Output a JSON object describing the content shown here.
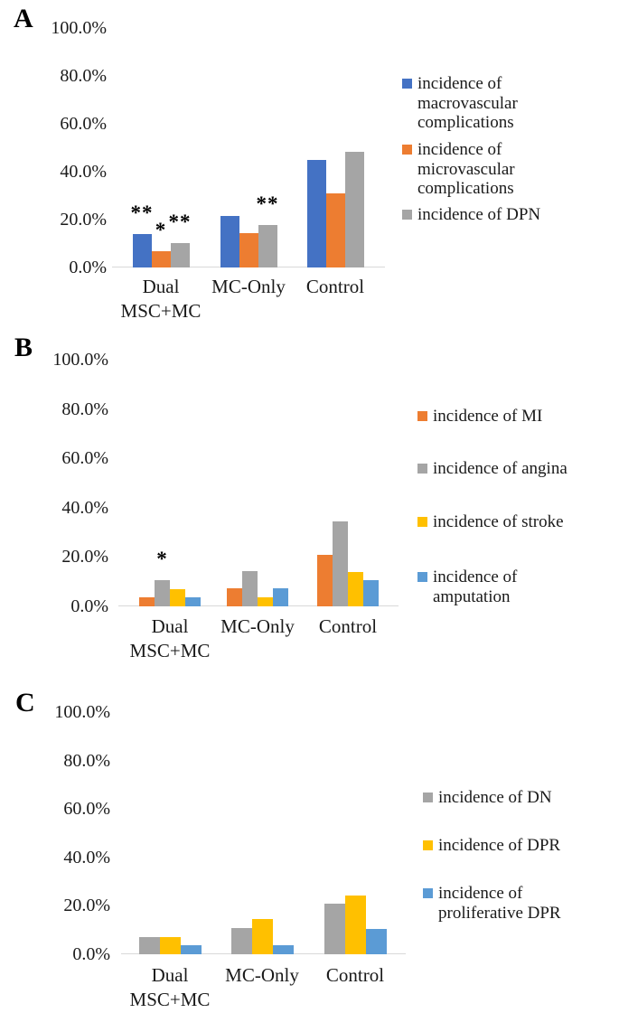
{
  "figure": {
    "type": "three-panel grouped bar chart figure",
    "background": "#ffffff",
    "panel_letters": [
      "A",
      "B",
      "C"
    ]
  },
  "chart_data": [
    {
      "type": "bar",
      "panel": "A",
      "title": "",
      "xlabel": "",
      "ylabel": "",
      "ylim": [
        0,
        100
      ],
      "y_unit": "percent",
      "y_ticks": [
        "100.0%",
        "80.0%",
        "60.0%",
        "40.0%",
        "20.0%",
        "0.0%"
      ],
      "grid": false,
      "legend_position": "right",
      "categories": [
        "Dual\nMSC+MC",
        "MC-Only",
        "Control"
      ],
      "series": [
        {
          "name": "incidence of macrovascular complications",
          "name_lines": [
            "incidence of",
            "macrovascular",
            "complications"
          ],
          "color": "#4472C4",
          "values": [
            13.8,
            21.4,
            44.8
          ]
        },
        {
          "name": "incidence of microvascular complications",
          "name_lines": [
            "incidence of",
            "microvascular",
            "complications"
          ],
          "color": "#ED7D31",
          "values": [
            6.9,
            14.3,
            31.0
          ]
        },
        {
          "name": "incidence of DPN",
          "name_lines": [
            "incidence of DPN"
          ],
          "color": "#A5A5A5",
          "values": [
            10.3,
            17.9,
            48.3
          ]
        }
      ],
      "significance_markers": [
        {
          "category_index": 0,
          "series_index": 0,
          "marker": "**"
        },
        {
          "category_index": 0,
          "series_index": 1,
          "marker": "*"
        },
        {
          "category_index": 0,
          "series_index": 2,
          "marker": "**"
        },
        {
          "category_index": 1,
          "series_index": 2,
          "marker": "**"
        }
      ]
    },
    {
      "type": "bar",
      "panel": "B",
      "title": "",
      "xlabel": "",
      "ylabel": "",
      "ylim": [
        0,
        100
      ],
      "y_unit": "percent",
      "y_ticks": [
        "100.0%",
        "80.0%",
        "60.0%",
        "40.0%",
        "20.0%",
        "0.0%"
      ],
      "grid": false,
      "legend_position": "right",
      "categories": [
        "Dual\nMSC+MC",
        "MC-Only",
        "Control"
      ],
      "series": [
        {
          "name": "incidence of MI",
          "name_lines": [
            "incidence of MI"
          ],
          "color": "#ED7D31",
          "values": [
            3.4,
            7.1,
            20.7
          ]
        },
        {
          "name": "incidence of angina",
          "name_lines": [
            "incidence of angina"
          ],
          "color": "#A5A5A5",
          "values": [
            10.3,
            14.3,
            34.5
          ]
        },
        {
          "name": "incidence of stroke",
          "name_lines": [
            "incidence of stroke"
          ],
          "color": "#FFC000",
          "values": [
            6.9,
            3.6,
            13.8
          ]
        },
        {
          "name": "incidence of amputation",
          "name_lines": [
            "incidence of",
            "amputation"
          ],
          "color": "#5B9BD5",
          "values": [
            3.4,
            7.1,
            10.3
          ]
        }
      ],
      "significance_markers": [
        {
          "category_index": 0,
          "series_index": 1,
          "marker": "*"
        }
      ]
    },
    {
      "type": "bar",
      "panel": "C",
      "title": "",
      "xlabel": "",
      "ylabel": "",
      "ylim": [
        0,
        100
      ],
      "y_unit": "percent",
      "y_ticks": [
        "100.0%",
        "80.0%",
        "60.0%",
        "40.0%",
        "20.0%",
        "0.0%"
      ],
      "grid": false,
      "legend_position": "right",
      "categories": [
        "Dual\nMSC+MC",
        "MC-Only",
        "Control"
      ],
      "series": [
        {
          "name": "incidence of DN",
          "name_lines": [
            "incidence of DN"
          ],
          "color": "#A5A5A5",
          "values": [
            6.9,
            10.7,
            20.7
          ]
        },
        {
          "name": "incidence of DPR",
          "name_lines": [
            "incidence of DPR"
          ],
          "color": "#FFC000",
          "values": [
            6.9,
            14.3,
            24.1
          ]
        },
        {
          "name": "incidence of proliferative DPR",
          "name_lines": [
            "incidence of",
            "proliferative DPR"
          ],
          "color": "#5B9BD5",
          "values": [
            3.4,
            3.6,
            10.3
          ]
        }
      ],
      "significance_markers": []
    }
  ]
}
